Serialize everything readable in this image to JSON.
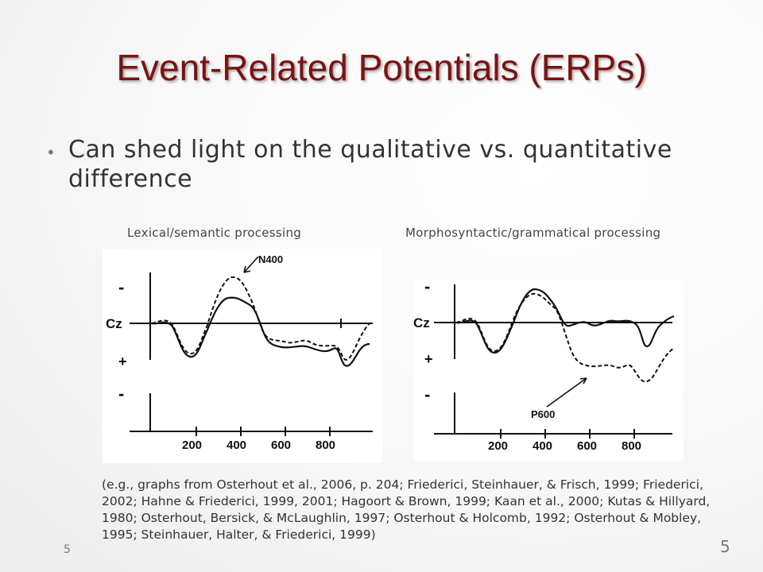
{
  "title": "Event-Related Potentials (ERPs)",
  "bullet": "Can shed light on the qualitative vs. quantitative difference",
  "left_graph": {
    "label": "Lexical/semantic processing",
    "annotation": "N400",
    "channel": "Cz",
    "minus": "-",
    "plus": "+",
    "ticks": [
      "200",
      "400",
      "600",
      "800"
    ]
  },
  "right_graph": {
    "label": "Morphosyntactic/grammatical processing",
    "annotation": "P600",
    "channel": "Cz",
    "minus": "-",
    "plus": "+",
    "ticks": [
      "200",
      "400",
      "600",
      "800"
    ]
  },
  "citation": "(e.g., graphs from Osterhout et al., 2006, p. 204; Friederici, Steinhauer, & Frisch, 1999; Friederici, 2002; Hahne & Friederici, 1999, 2001; Hagoort & Brown, 1999; Kaan et al., 2000; Kutas & Hillyard, 1980; Osterhout, Bersick, & McLaughlin, 1997; Osterhout & Holcomb, 1992; Osterhout & Mobley, 1995; Steinhauer, Halter, & Friederici, 1999)",
  "page_number_left": "5",
  "page_number_right": "5",
  "colors": {
    "title": "#7a1212",
    "text": "#333333"
  }
}
